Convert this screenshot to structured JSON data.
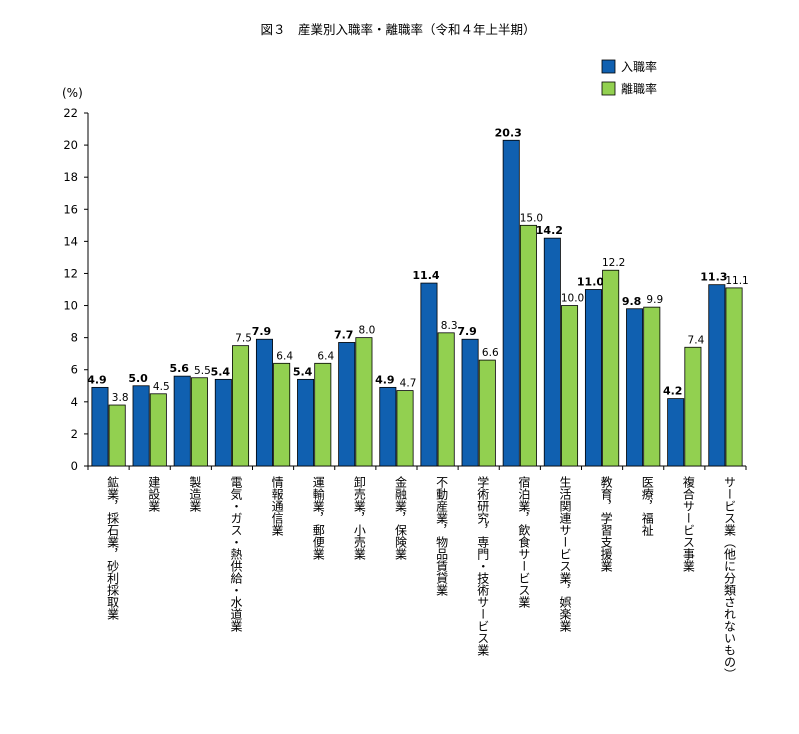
{
  "chart_data": {
    "type": "bar",
    "title": "図３　産業別入職率・離職率（令和４年上半期）",
    "ylabel": "(%)",
    "ylim": [
      0,
      22
    ],
    "yticks": [
      0,
      2,
      4,
      6,
      8,
      10,
      12,
      14,
      16,
      18,
      20,
      22
    ],
    "legend_position": "top-right",
    "categories": [
      "鉱業，採石業，砂利採取業",
      "建設業",
      "製造業",
      "電気・ガス・熱供給・水道業",
      "情報通信業",
      "運輸業，郵便業",
      "卸売業，小売業",
      "金融業，保険業",
      "不動産業，物品賃貸業",
      "学術研究，専門・技術サービス業",
      "宿泊業，飲食サービス業",
      "生活関連サービス業，娯楽業",
      "教育，学習支援業",
      "医療，福祉",
      "複合サービス事業",
      "サービス業（他に分類されないもの）"
    ],
    "series": [
      {
        "name": "入職率",
        "color": "#1060b0",
        "values": [
          4.9,
          5.0,
          5.6,
          5.4,
          7.9,
          5.4,
          7.7,
          4.9,
          11.4,
          7.9,
          20.3,
          14.2,
          11.0,
          9.8,
          4.2,
          11.3
        ],
        "labels": [
          "4.9",
          "5.0",
          "5.6",
          "5.4",
          "7.9",
          "5.4",
          "7.7",
          "4.9",
          "11.4",
          "7.9",
          "20.3",
          "14.2",
          "11.0",
          "9.8",
          "4.2",
          "11.3"
        ]
      },
      {
        "name": "離職率",
        "color": "#92d050",
        "values": [
          3.8,
          4.5,
          5.5,
          7.5,
          6.4,
          6.4,
          8.0,
          4.7,
          8.3,
          6.6,
          15.0,
          10.0,
          12.2,
          9.9,
          7.4,
          11.1
        ],
        "labels": [
          "3.8",
          "4.5",
          "5.5",
          "7.5",
          "6.4",
          "6.4",
          "8.0",
          "4.7",
          "8.3",
          "6.6",
          "15.0",
          "10.0",
          "12.2",
          "9.9",
          "7.4",
          "11.1"
        ]
      }
    ]
  }
}
